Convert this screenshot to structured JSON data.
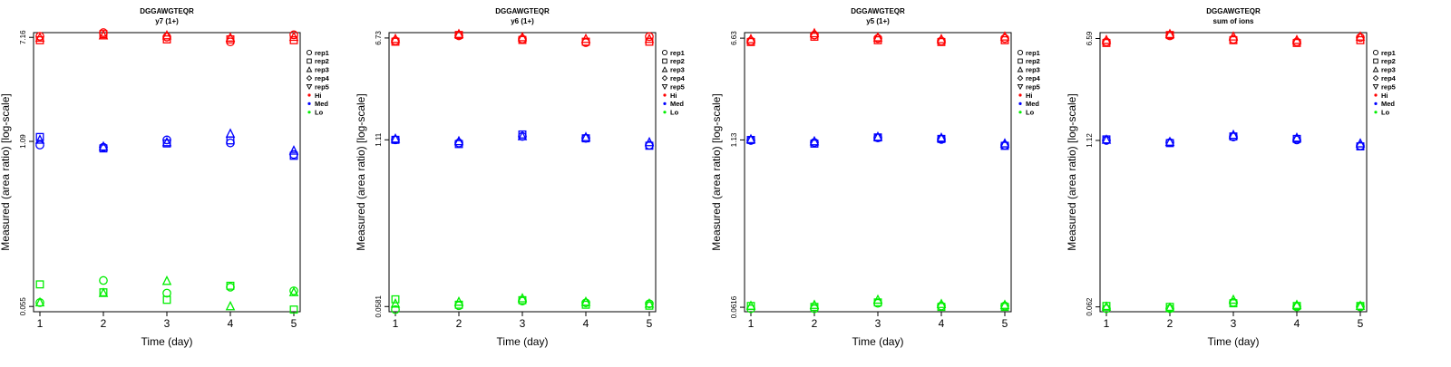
{
  "colors": {
    "Hi": "#ff0000",
    "Med": "#0000ff",
    "Lo": "#00ee00",
    "axis": "#000000"
  },
  "legend": {
    "entries": [
      {
        "label": "rep1",
        "symbol": "circle"
      },
      {
        "label": "rep2",
        "symbol": "square"
      },
      {
        "label": "rep3",
        "symbol": "triangle-up"
      },
      {
        "label": "rep4",
        "symbol": "diamond"
      },
      {
        "label": "rep5",
        "symbol": "triangle-down"
      },
      {
        "label": "Hi",
        "symbol": "dot",
        "color": "#ff0000"
      },
      {
        "label": "Med",
        "symbol": "dot",
        "color": "#0000ff"
      },
      {
        "label": "Lo",
        "symbol": "dot",
        "color": "#00ee00"
      }
    ]
  },
  "chart_data": [
    {
      "type": "scatter",
      "title": "DGGAWGTEQR",
      "subtitle": "y7 (1+)",
      "xlabel": "Time (day)",
      "ylabel": "Measured (area ratio) [log-scale]",
      "yscale": "log",
      "x": [
        1,
        2,
        3,
        4,
        5
      ],
      "xlim": [
        0.9,
        5.1
      ],
      "ylim": [
        0.05,
        7.8
      ],
      "yticks": [
        {
          "value": 0.055,
          "label": "0.055"
        },
        {
          "value": 1.09,
          "label": "1.09"
        },
        {
          "value": 7.16,
          "label": "7.16"
        }
      ],
      "legend_position": "right",
      "grid": false,
      "series": [
        {
          "level": "Hi",
          "rep": "rep1",
          "values": [
            7.3,
            7.8,
            7.2,
            6.6,
            7.5
          ]
        },
        {
          "level": "Hi",
          "rep": "rep2",
          "values": [
            6.8,
            7.6,
            6.9,
            6.9,
            6.8
          ]
        },
        {
          "level": "Hi",
          "rep": "rep3",
          "values": [
            7.1,
            7.4,
            7.4,
            7.1,
            7.2
          ]
        },
        {
          "level": "Med",
          "rep": "rep1",
          "values": [
            1.02,
            0.98,
            1.12,
            1.06,
            0.86
          ]
        },
        {
          "level": "Med",
          "rep": "rep2",
          "values": [
            1.18,
            0.96,
            1.05,
            1.11,
            0.84
          ]
        },
        {
          "level": "Med",
          "rep": "rep3",
          "values": [
            1.12,
            0.99,
            1.07,
            1.25,
            0.92
          ]
        },
        {
          "level": "Lo",
          "rep": "rep1",
          "values": [
            0.059,
            0.088,
            0.07,
            0.078,
            0.073
          ]
        },
        {
          "level": "Lo",
          "rep": "rep2",
          "values": [
            0.082,
            0.071,
            0.062,
            0.08,
            0.052
          ]
        },
        {
          "level": "Lo",
          "rep": "rep3",
          "values": [
            0.059,
            0.07,
            0.087,
            0.055,
            0.071
          ]
        }
      ]
    },
    {
      "type": "scatter",
      "title": "DGGAWGTEQR",
      "subtitle": "y6 (1+)",
      "xlabel": "Time (day)",
      "ylabel": "Measured (area ratio) [log-scale]",
      "yscale": "log",
      "x": [
        1,
        2,
        3,
        4,
        5
      ],
      "xlim": [
        0.9,
        5.1
      ],
      "ylim": [
        0.053,
        7.4
      ],
      "yticks": [
        {
          "value": 0.0581,
          "label": "0.0581"
        },
        {
          "value": 1.11,
          "label": "1.11"
        },
        {
          "value": 6.73,
          "label": "6.73"
        }
      ],
      "legend_position": "right",
      "grid": false,
      "series": [
        {
          "level": "Hi",
          "rep": "rep1",
          "values": [
            6.4,
            7.0,
            6.6,
            6.2,
            6.9
          ]
        },
        {
          "level": "Hi",
          "rep": "rep2",
          "values": [
            6.3,
            7.1,
            6.5,
            6.3,
            6.3
          ]
        },
        {
          "level": "Hi",
          "rep": "rep3",
          "values": [
            6.6,
            7.2,
            6.8,
            6.6,
            6.6
          ]
        },
        {
          "level": "Med",
          "rep": "rep1",
          "values": [
            1.11,
            1.05,
            1.18,
            1.14,
            1.01
          ]
        },
        {
          "level": "Med",
          "rep": "rep2",
          "values": [
            1.11,
            1.03,
            1.22,
            1.14,
            1.0
          ]
        },
        {
          "level": "Med",
          "rep": "rep3",
          "values": [
            1.13,
            1.08,
            1.18,
            1.16,
            1.06
          ]
        },
        {
          "level": "Lo",
          "rep": "rep1",
          "values": [
            0.055,
            0.059,
            0.064,
            0.062,
            0.061
          ]
        },
        {
          "level": "Lo",
          "rep": "rep2",
          "values": [
            0.066,
            0.06,
            0.065,
            0.06,
            0.059
          ]
        },
        {
          "level": "Lo",
          "rep": "rep3",
          "values": [
            0.061,
            0.063,
            0.067,
            0.063,
            0.061
          ]
        }
      ]
    },
    {
      "type": "scatter",
      "title": "DGGAWGTEQR",
      "subtitle": "y5 (1+)",
      "xlabel": "Time (day)",
      "ylabel": "Measured (area ratio) [log-scale]",
      "yscale": "log",
      "x": [
        1,
        2,
        3,
        4,
        5
      ],
      "xlim": [
        0.9,
        5.1
      ],
      "ylim": [
        0.057,
        7.3
      ],
      "yticks": [
        {
          "value": 0.0616,
          "label": "0.0616"
        },
        {
          "value": 1.13,
          "label": "1.13"
        },
        {
          "value": 6.63,
          "label": "6.63"
        }
      ],
      "legend_position": "right",
      "grid": false,
      "series": [
        {
          "level": "Hi",
          "rep": "rep1",
          "values": [
            6.3,
            7.0,
            6.6,
            6.3,
            6.6
          ]
        },
        {
          "level": "Hi",
          "rep": "rep2",
          "values": [
            6.2,
            6.8,
            6.4,
            6.2,
            6.4
          ]
        },
        {
          "level": "Hi",
          "rep": "rep3",
          "values": [
            6.5,
            7.2,
            6.7,
            6.5,
            6.8
          ]
        },
        {
          "level": "Med",
          "rep": "rep1",
          "values": [
            1.12,
            1.08,
            1.17,
            1.14,
            1.03
          ]
        },
        {
          "level": "Med",
          "rep": "rep2",
          "values": [
            1.13,
            1.06,
            1.18,
            1.15,
            1.02
          ]
        },
        {
          "level": "Med",
          "rep": "rep3",
          "values": [
            1.14,
            1.1,
            1.19,
            1.17,
            1.06
          ]
        },
        {
          "level": "Lo",
          "rep": "rep1",
          "values": [
            0.06,
            0.06,
            0.066,
            0.063,
            0.063
          ]
        },
        {
          "level": "Lo",
          "rep": "rep2",
          "values": [
            0.063,
            0.062,
            0.067,
            0.062,
            0.062
          ]
        },
        {
          "level": "Lo",
          "rep": "rep3",
          "values": [
            0.063,
            0.064,
            0.07,
            0.065,
            0.064
          ]
        }
      ]
    },
    {
      "type": "scatter",
      "title": "DGGAWGTEQR",
      "subtitle": "sum of ions",
      "xlabel": "Time (day)",
      "ylabel": "Measured (area ratio) [log-scale]",
      "yscale": "log",
      "x": [
        1,
        2,
        3,
        4,
        5
      ],
      "xlim": [
        0.9,
        5.1
      ],
      "ylim": [
        0.057,
        7.3
      ],
      "yticks": [
        {
          "value": 0.062,
          "label": "0.062"
        },
        {
          "value": 1.12,
          "label": "1.12"
        },
        {
          "value": 6.59,
          "label": "6.59"
        }
      ],
      "legend_position": "right",
      "grid": false,
      "series": [
        {
          "level": "Hi",
          "rep": "rep1",
          "values": [
            6.2,
            6.9,
            6.5,
            6.2,
            6.7
          ]
        },
        {
          "level": "Hi",
          "rep": "rep2",
          "values": [
            6.1,
            7.0,
            6.4,
            6.1,
            6.4
          ]
        },
        {
          "level": "Hi",
          "rep": "rep3",
          "values": [
            6.4,
            7.1,
            6.8,
            6.4,
            6.8
          ]
        },
        {
          "level": "Med",
          "rep": "rep1",
          "values": [
            1.12,
            1.08,
            1.19,
            1.13,
            1.02
          ]
        },
        {
          "level": "Med",
          "rep": "rep2",
          "values": [
            1.14,
            1.07,
            1.2,
            1.15,
            1.01
          ]
        },
        {
          "level": "Med",
          "rep": "rep3",
          "values": [
            1.13,
            1.09,
            1.23,
            1.17,
            1.06
          ]
        },
        {
          "level": "Lo",
          "rep": "rep1",
          "values": [
            0.06,
            0.06,
            0.067,
            0.062,
            0.062
          ]
        },
        {
          "level": "Lo",
          "rep": "rep2",
          "values": [
            0.063,
            0.062,
            0.066,
            0.063,
            0.063
          ]
        },
        {
          "level": "Lo",
          "rep": "rep3",
          "values": [
            0.062,
            0.061,
            0.07,
            0.064,
            0.063
          ]
        }
      ]
    }
  ]
}
